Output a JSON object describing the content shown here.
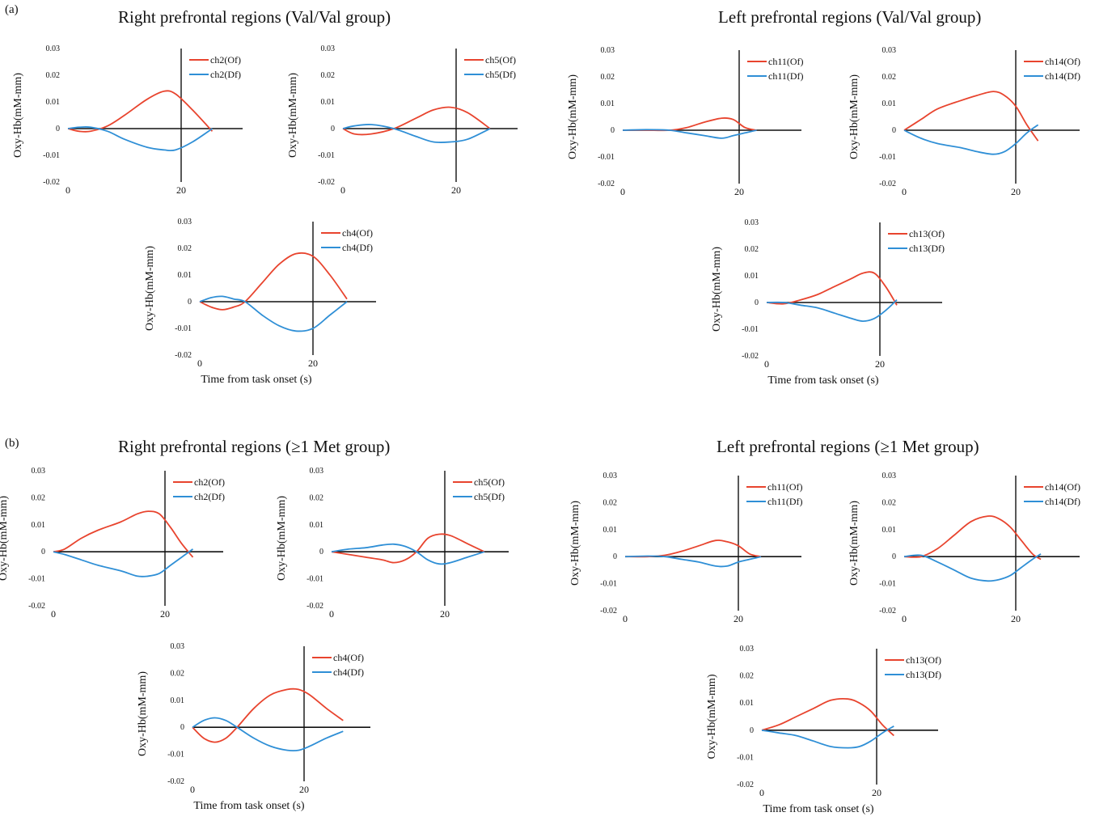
{
  "panels": {
    "a": {
      "letter": "(a)",
      "right_title": "Right prefrontal regions (Val/Val group)",
      "left_title": "Left prefrontal regions (Val/Val group)"
    },
    "b": {
      "letter": "(b)",
      "right_title": "Right prefrontal regions (≥1 Met group)",
      "left_title": "Left prefrontal regions (≥1 Met group)"
    }
  },
  "colors": {
    "Of": "#e8442e",
    "Df": "#2f8fd6",
    "axis": "#111111"
  },
  "chart_data": [
    {
      "type": "line",
      "panel": "a",
      "channel": "ch2",
      "ylabel": "Oxy-Hb(mM-mm)",
      "xlabel": "",
      "ylim": [
        -0.02,
        0.03
      ],
      "yticks": [
        -0.02,
        -0.01,
        0,
        0.01,
        0.02,
        0.03
      ],
      "xticks": [
        0,
        20
      ],
      "series": [
        {
          "name": "ch2(Of)",
          "key": "Of",
          "x": [
            0,
            2,
            4,
            7,
            10,
            14,
            17,
            19,
            22,
            25.5
          ],
          "y": [
            0,
            -0.001,
            -0.001,
            0.001,
            0.005,
            0.011,
            0.014,
            0.013,
            0.007,
            -0.001
          ]
        },
        {
          "name": "ch2(Df)",
          "key": "Df",
          "x": [
            0,
            2,
            4,
            7,
            10,
            14,
            17,
            19,
            22,
            25.5
          ],
          "y": [
            0,
            0.0005,
            0.0005,
            -0.001,
            -0.004,
            -0.007,
            -0.008,
            -0.008,
            -0.005,
            0
          ]
        }
      ]
    },
    {
      "type": "line",
      "panel": "a",
      "channel": "ch5",
      "ylabel": "Oxy-Hb(mM-mm)",
      "xlabel": "",
      "ylim": [
        -0.02,
        0.03
      ],
      "yticks": [
        -0.02,
        -0.01,
        0,
        0.01,
        0.02,
        0.03
      ],
      "xticks": [
        0,
        20
      ],
      "series": [
        {
          "name": "ch5(Of)",
          "key": "Of",
          "x": [
            0,
            2,
            5,
            9,
            13,
            16,
            19,
            22,
            26
          ],
          "y": [
            0,
            -0.002,
            -0.002,
            0,
            0.004,
            0.007,
            0.008,
            0.006,
            0
          ]
        },
        {
          "name": "ch5(Df)",
          "key": "Df",
          "x": [
            0,
            2,
            5,
            9,
            13,
            16,
            19,
            22,
            26
          ],
          "y": [
            0,
            0.001,
            0.0015,
            0,
            -0.003,
            -0.005,
            -0.005,
            -0.004,
            0
          ]
        }
      ]
    },
    {
      "type": "line",
      "panel": "a",
      "channel": "ch4",
      "ylabel": "Oxy-Hb(mM-mm)",
      "xlabel": "Time from task onset (s)",
      "ylim": [
        -0.02,
        0.03
      ],
      "yticks": [
        -0.02,
        -0.01,
        0,
        0.01,
        0.02,
        0.03
      ],
      "xticks": [
        0,
        20
      ],
      "series": [
        {
          "name": "ch4(Of)",
          "key": "Of",
          "x": [
            0,
            2,
            4,
            6,
            8,
            11,
            14,
            17,
            20,
            23,
            26
          ],
          "y": [
            0,
            -0.002,
            -0.003,
            -0.002,
            0,
            0.007,
            0.014,
            0.018,
            0.017,
            0.01,
            0.001
          ]
        },
        {
          "name": "ch4(Df)",
          "key": "Df",
          "x": [
            0,
            2,
            4,
            6,
            8,
            11,
            14,
            17,
            20,
            23,
            26
          ],
          "y": [
            0,
            0.0015,
            0.002,
            0.001,
            0,
            -0.005,
            -0.009,
            -0.011,
            -0.01,
            -0.005,
            0
          ]
        }
      ]
    },
    {
      "type": "line",
      "panel": "a",
      "channel": "ch11",
      "ylabel": "Oxy-Hb(mM-mm)",
      "xlabel": "",
      "ylim": [
        -0.02,
        0.03
      ],
      "yticks": [
        -0.02,
        -0.01,
        0,
        0.01,
        0.02,
        0.03
      ],
      "xticks": [
        0,
        20
      ],
      "series": [
        {
          "name": "ch11(Of)",
          "key": "Of",
          "x": [
            0,
            4,
            8,
            11,
            14,
            17,
            19,
            21,
            23
          ],
          "y": [
            0,
            0,
            0,
            0.001,
            0.003,
            0.0045,
            0.004,
            0.001,
            0
          ]
        },
        {
          "name": "ch11(Df)",
          "key": "Df",
          "x": [
            0,
            4,
            8,
            11,
            14,
            17,
            19,
            21,
            23
          ],
          "y": [
            0,
            0.0002,
            0,
            -0.001,
            -0.002,
            -0.003,
            -0.002,
            -0.001,
            0
          ]
        }
      ]
    },
    {
      "type": "line",
      "panel": "a",
      "channel": "ch14",
      "ylabel": "Oxy-Hb(mM-mm)",
      "xlabel": "",
      "ylim": [
        -0.02,
        0.03
      ],
      "yticks": [
        -0.02,
        -0.01,
        0,
        0.01,
        0.02,
        0.03
      ],
      "xticks": [
        0,
        20
      ],
      "series": [
        {
          "name": "ch14(Of)",
          "key": "Of",
          "x": [
            0,
            3,
            6,
            10,
            13,
            16,
            18,
            20,
            22,
            24
          ],
          "y": [
            0,
            0.004,
            0.008,
            0.011,
            0.013,
            0.0145,
            0.013,
            0.009,
            0.002,
            -0.004
          ]
        },
        {
          "name": "ch14(Df)",
          "key": "Df",
          "x": [
            0,
            3,
            6,
            10,
            13,
            16,
            18,
            20,
            22,
            24
          ],
          "y": [
            0,
            -0.003,
            -0.005,
            -0.0065,
            -0.008,
            -0.009,
            -0.008,
            -0.005,
            -0.001,
            0.002
          ]
        }
      ]
    },
    {
      "type": "line",
      "panel": "a",
      "channel": "ch13",
      "ylabel": "Oxy-Hb(mM-mm)",
      "xlabel": "Time from task onset (s)",
      "ylim": [
        -0.02,
        0.03
      ],
      "yticks": [
        -0.02,
        -0.01,
        0,
        0.01,
        0.02,
        0.03
      ],
      "xticks": [
        0,
        20
      ],
      "series": [
        {
          "name": "ch13(Of)",
          "key": "Of",
          "x": [
            0,
            3,
            6,
            9,
            12,
            15,
            17,
            19,
            21,
            23
          ],
          "y": [
            0,
            -0.0005,
            0.001,
            0.003,
            0.006,
            0.009,
            0.011,
            0.011,
            0.006,
            -0.001
          ]
        },
        {
          "name": "ch13(Df)",
          "key": "Df",
          "x": [
            0,
            3,
            6,
            9,
            12,
            15,
            17,
            19,
            21,
            23
          ],
          "y": [
            0,
            0,
            -0.001,
            -0.002,
            -0.004,
            -0.006,
            -0.007,
            -0.006,
            -0.003,
            0.001
          ]
        }
      ]
    },
    {
      "type": "line",
      "panel": "b",
      "channel": "ch2",
      "ylabel": "Oxy-Hb(mM-mm)",
      "xlabel": "",
      "ylim": [
        -0.02,
        0.03
      ],
      "yticks": [
        -0.02,
        -0.01,
        0,
        0.01,
        0.02,
        0.03
      ],
      "xticks": [
        0,
        20
      ],
      "series": [
        {
          "name": "ch2(Of)",
          "key": "Of",
          "x": [
            0,
            2,
            5,
            8,
            12,
            15,
            17,
            19,
            21,
            23,
            25
          ],
          "y": [
            0,
            0.001,
            0.005,
            0.008,
            0.011,
            0.014,
            0.015,
            0.014,
            0.009,
            0.003,
            -0.002
          ]
        },
        {
          "name": "ch2(Df)",
          "key": "Df",
          "x": [
            0,
            2,
            5,
            8,
            12,
            15,
            17,
            19,
            21,
            23,
            25
          ],
          "y": [
            0,
            -0.001,
            -0.003,
            -0.005,
            -0.007,
            -0.009,
            -0.009,
            -0.008,
            -0.005,
            -0.002,
            0.001
          ]
        }
      ]
    },
    {
      "type": "line",
      "panel": "b",
      "channel": "ch5",
      "ylabel": "Oxy-Hb(mM-mm)",
      "xlabel": "",
      "ylim": [
        -0.02,
        0.03
      ],
      "yticks": [
        -0.02,
        -0.01,
        0,
        0.01,
        0.02,
        0.03
      ],
      "xticks": [
        0,
        20
      ],
      "series": [
        {
          "name": "ch5(Of)",
          "key": "Of",
          "x": [
            0,
            3,
            6,
            9,
            11,
            13,
            15,
            17,
            19,
            21,
            24,
            27
          ],
          "y": [
            0,
            -0.001,
            -0.002,
            -0.003,
            -0.004,
            -0.003,
            0,
            0.005,
            0.0065,
            0.006,
            0.003,
            0
          ]
        },
        {
          "name": "ch5(Df)",
          "key": "Df",
          "x": [
            0,
            3,
            6,
            9,
            11,
            13,
            15,
            17,
            19,
            21,
            24,
            27
          ],
          "y": [
            0,
            0.001,
            0.0015,
            0.0025,
            0.0028,
            0.002,
            0,
            -0.003,
            -0.0045,
            -0.004,
            -0.002,
            0
          ]
        }
      ]
    },
    {
      "type": "line",
      "panel": "b",
      "channel": "ch4",
      "ylabel": "Oxy-Hb(mM-mm)",
      "xlabel": "Time from task onset (s)",
      "ylim": [
        -0.02,
        0.03
      ],
      "yticks": [
        -0.02,
        -0.01,
        0,
        0.01,
        0.02,
        0.03
      ],
      "xticks": [
        0,
        20
      ],
      "series": [
        {
          "name": "ch4(Of)",
          "key": "Of",
          "x": [
            0,
            2,
            4,
            6,
            8,
            11,
            14,
            17,
            19,
            21,
            24,
            27
          ],
          "y": [
            0,
            -0.004,
            -0.0055,
            -0.004,
            0,
            0.007,
            0.012,
            0.014,
            0.014,
            0.012,
            0.007,
            0.0025
          ]
        },
        {
          "name": "ch4(Df)",
          "key": "Df",
          "x": [
            0,
            2,
            4,
            6,
            8,
            11,
            14,
            17,
            19,
            21,
            24,
            27
          ],
          "y": [
            0,
            0.0025,
            0.0035,
            0.0025,
            0,
            -0.004,
            -0.007,
            -0.0085,
            -0.0085,
            -0.007,
            -0.004,
            -0.0015
          ]
        }
      ]
    },
    {
      "type": "line",
      "panel": "b",
      "channel": "ch11",
      "ylabel": "Oxy-Hb(mM-mm)",
      "xlabel": "",
      "ylim": [
        -0.02,
        0.03
      ],
      "yticks": [
        -0.02,
        -0.01,
        0,
        0.01,
        0.02,
        0.03
      ],
      "xticks": [
        0,
        20
      ],
      "series": [
        {
          "name": "ch11(Of)",
          "key": "Of",
          "x": [
            0,
            4,
            7,
            10,
            13,
            16,
            18,
            20,
            22,
            24
          ],
          "y": [
            0,
            0,
            0.0005,
            0.002,
            0.004,
            0.006,
            0.0055,
            0.004,
            0.001,
            0
          ]
        },
        {
          "name": "ch11(Df)",
          "key": "Df",
          "x": [
            0,
            4,
            7,
            10,
            13,
            16,
            18,
            20,
            22,
            24
          ],
          "y": [
            0,
            0.0002,
            0,
            -0.001,
            -0.002,
            -0.0035,
            -0.0035,
            -0.002,
            -0.001,
            0
          ]
        }
      ]
    },
    {
      "type": "line",
      "panel": "b",
      "channel": "ch14",
      "ylabel": "Oxy-Hb(mM-mm)",
      "xlabel": "",
      "ylim": [
        -0.02,
        0.03
      ],
      "yticks": [
        -0.02,
        -0.01,
        0,
        0.01,
        0.02,
        0.03
      ],
      "xticks": [
        0,
        20
      ],
      "series": [
        {
          "name": "ch14(Of)",
          "key": "Of",
          "x": [
            0,
            3,
            6,
            9,
            12,
            15,
            17,
            19,
            21,
            23,
            24.5
          ],
          "y": [
            0,
            0,
            0.003,
            0.008,
            0.013,
            0.015,
            0.014,
            0.011,
            0.006,
            0.001,
            -0.001
          ]
        },
        {
          "name": "ch14(Df)",
          "key": "Df",
          "x": [
            0,
            3,
            6,
            9,
            12,
            15,
            17,
            19,
            21,
            23,
            24.5
          ],
          "y": [
            0,
            0.0005,
            -0.002,
            -0.005,
            -0.008,
            -0.009,
            -0.0085,
            -0.007,
            -0.004,
            -0.001,
            0.001
          ]
        }
      ]
    },
    {
      "type": "line",
      "panel": "b",
      "channel": "ch13",
      "ylabel": "Oxy-Hb(mM-mm)",
      "xlabel": "Time from task onset (s)",
      "ylim": [
        -0.02,
        0.03
      ],
      "yticks": [
        -0.02,
        -0.01,
        0,
        0.01,
        0.02,
        0.03
      ],
      "xticks": [
        0,
        20
      ],
      "series": [
        {
          "name": "ch13(Of)",
          "key": "Of",
          "x": [
            0,
            3,
            6,
            9,
            12,
            15,
            17,
            19,
            21,
            23
          ],
          "y": [
            0,
            0.002,
            0.005,
            0.008,
            0.011,
            0.0115,
            0.01,
            0.007,
            0.002,
            -0.002
          ]
        },
        {
          "name": "ch13(Df)",
          "key": "Df",
          "x": [
            0,
            3,
            6,
            9,
            12,
            15,
            17,
            19,
            21,
            23
          ],
          "y": [
            0,
            -0.001,
            -0.002,
            -0.004,
            -0.006,
            -0.0065,
            -0.006,
            -0.004,
            -0.001,
            0.0015
          ]
        }
      ]
    }
  ]
}
